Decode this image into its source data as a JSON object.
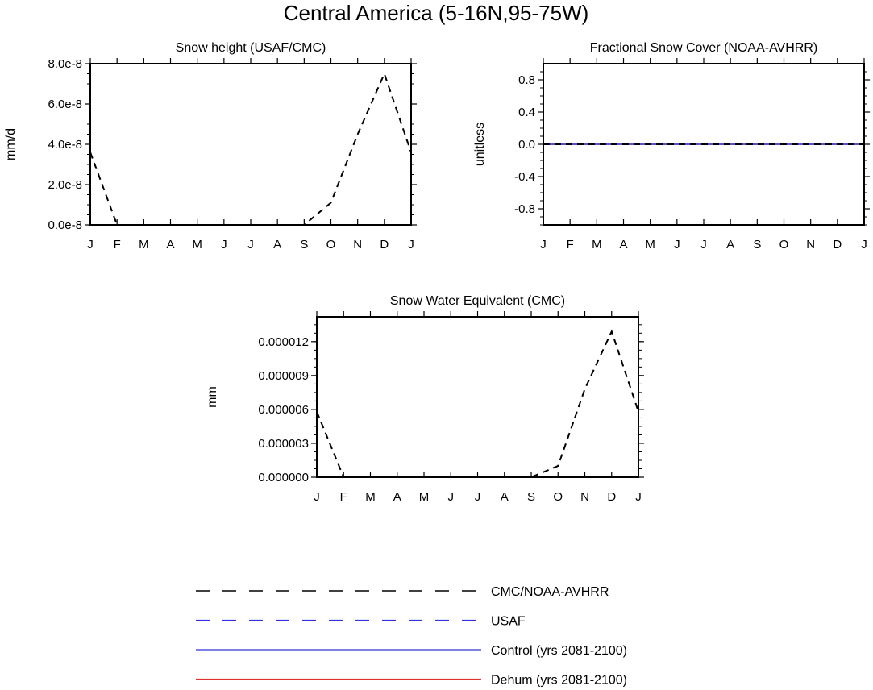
{
  "title": "Central America (5-16N,95-75W)",
  "chart_data": [
    {
      "type": "line",
      "title": "Snow height (USAF/CMC)",
      "ylabel": "mm/d",
      "categories": [
        "J",
        "F",
        "M",
        "A",
        "M",
        "J",
        "J",
        "A",
        "S",
        "O",
        "N",
        "D",
        "J"
      ],
      "ylim": [
        0,
        8e-08
      ],
      "yticks": [
        0,
        2e-08,
        4e-08,
        6e-08,
        8e-08
      ],
      "ytick_labels": [
        "0.0e-8",
        "2.0e-8",
        "4.0e-8",
        "6.0e-8",
        "8.0e-8"
      ],
      "series": [
        {
          "name": "CMC/NOAA-AVHRR",
          "style": "dash-black",
          "values": [
            3.6e-08,
            0,
            0,
            0,
            0,
            0,
            0,
            0,
            0,
            1.1e-08,
            4.5e-08,
            7.5e-08,
            3.6e-08
          ]
        },
        {
          "name": "USAF",
          "style": "dash-blue",
          "values": [
            0,
            0,
            0,
            0,
            0,
            0,
            0,
            0,
            0,
            0,
            0,
            0,
            0
          ]
        },
        {
          "name": "Control (yrs 2081-2100)",
          "style": "solid-blue",
          "values": [
            0,
            0,
            0,
            0,
            0,
            0,
            0,
            0,
            0,
            0,
            0,
            0,
            0
          ]
        },
        {
          "name": "Dehum (yrs 2081-2100)",
          "style": "solid-red",
          "values": [
            0,
            0,
            0,
            0,
            0,
            0,
            0,
            0,
            0,
            0,
            0,
            0,
            0
          ]
        }
      ]
    },
    {
      "type": "line",
      "title": "Fractional Snow Cover (NOAA-AVHRR)",
      "ylabel": "unitless",
      "categories": [
        "J",
        "F",
        "M",
        "A",
        "M",
        "J",
        "J",
        "A",
        "S",
        "O",
        "N",
        "D",
        "J"
      ],
      "ylim": [
        -1,
        1
      ],
      "yticks": [
        -0.8,
        -0.4,
        0,
        0.4,
        0.8
      ],
      "ytick_labels": [
        "-0.8",
        "-0.4",
        "0.0",
        "0.4",
        "0.8"
      ],
      "series": [
        {
          "name": "CMC/NOAA-AVHRR",
          "style": "dash-black",
          "values": [
            0,
            0,
            0,
            0,
            0,
            0,
            0,
            0,
            0,
            0,
            0,
            0,
            0
          ]
        },
        {
          "name": "USAF",
          "style": "dash-blue",
          "values": [
            0,
            0,
            0,
            0,
            0,
            0,
            0,
            0,
            0,
            0,
            0,
            0,
            0
          ]
        },
        {
          "name": "Control (yrs 2081-2100)",
          "style": "solid-blue",
          "values": [
            0,
            0,
            0,
            0,
            0,
            0,
            0,
            0,
            0,
            0,
            0,
            0,
            0
          ]
        },
        {
          "name": "Dehum (yrs 2081-2100)",
          "style": "solid-red",
          "values": [
            0,
            0,
            0,
            0,
            0,
            0,
            0,
            0,
            0,
            0,
            0,
            0,
            0
          ]
        }
      ]
    },
    {
      "type": "line",
      "title": "Snow Water Equivalent (CMC)",
      "ylabel": "mm",
      "categories": [
        "J",
        "F",
        "M",
        "A",
        "M",
        "J",
        "J",
        "A",
        "S",
        "O",
        "N",
        "D",
        "J"
      ],
      "ylim": [
        0,
        1.42e-05
      ],
      "yticks": [
        0,
        3e-06,
        6e-06,
        9e-06,
        1.2e-05
      ],
      "ytick_labels": [
        "0.000000",
        "0.000003",
        "0.000006",
        "0.000009",
        "0.000012"
      ],
      "series": [
        {
          "name": "CMC/NOAA-AVHRR",
          "style": "dash-black",
          "values": [
            5.8e-06,
            0,
            0,
            0,
            0,
            0,
            0,
            0,
            0,
            1e-06,
            7.8e-06,
            1.29e-05,
            5.8e-06
          ]
        },
        {
          "name": "Control (yrs 2081-2100)",
          "style": "solid-blue",
          "values": [
            0,
            0,
            0,
            0,
            0,
            0,
            0,
            0,
            0,
            0,
            0,
            0,
            0
          ]
        },
        {
          "name": "Dehum (yrs 2081-2100)",
          "style": "solid-red",
          "values": [
            0,
            0,
            0,
            0,
            0,
            0,
            0,
            0,
            0,
            0,
            0,
            0,
            0
          ]
        }
      ]
    }
  ],
  "legend": [
    {
      "label": "CMC/NOAA-AVHRR",
      "style": "dash-black"
    },
    {
      "label": "USAF",
      "style": "dash-blue"
    },
    {
      "label": "Control (yrs 2081-2100)",
      "style": "solid-blue"
    },
    {
      "label": "Dehum (yrs 2081-2100)",
      "style": "solid-red"
    }
  ],
  "colors": {
    "black": "#000000",
    "blue": "#3333dd",
    "red": "#dd3333"
  }
}
